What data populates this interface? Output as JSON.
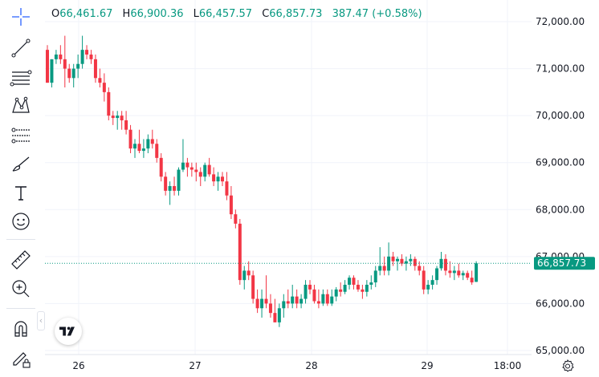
{
  "ohlc": {
    "o_label": "O",
    "o_value": "66,461.67",
    "h_label": "H",
    "h_value": "66,900.36",
    "l_label": "L",
    "l_value": "66,457.57",
    "c_label": "C",
    "c_value": "66,857.73",
    "change": "387.47 (+0.58%)"
  },
  "toolbar": {
    "icons": [
      "crosshair-icon",
      "trend-line-icon",
      "fib-retracement-icon",
      "pattern-icon",
      "forecast-icon",
      "brush-icon",
      "text-icon",
      "emoji-icon",
      "ruler-icon",
      "zoom-in-icon",
      "magnet-icon",
      "lock-drawings-icon"
    ],
    "collapse_glyph": "‹"
  },
  "colors": {
    "up": "#089981",
    "down": "#f23645",
    "grid": "#f0f3fa",
    "text": "#131722"
  },
  "chart_data": {
    "type": "candlestick",
    "price_label": "66,857.73",
    "y_axis_ticks": [
      "72,000.00",
      "71,000.00",
      "70,000.00",
      "69,000.00",
      "68,000.00",
      "67,000.00",
      "66,000.00",
      "65,000.00"
    ],
    "ylim": [
      64900,
      72300
    ],
    "x_axis_ticks": [
      "26",
      "27",
      "28",
      "29",
      "18:00"
    ],
    "current_price": 66857.73,
    "ohlc": [
      [
        71400,
        71500,
        70700,
        70700
      ],
      [
        70700,
        71200,
        70600,
        71200
      ],
      [
        71200,
        71400,
        71100,
        71300
      ],
      [
        71300,
        71500,
        71100,
        71200
      ],
      [
        71200,
        71700,
        70600,
        71000
      ],
      [
        71000,
        71100,
        70700,
        70800
      ],
      [
        70800,
        71100,
        70600,
        71000
      ],
      [
        71000,
        71300,
        70800,
        71100
      ],
      [
        71100,
        71700,
        71000,
        71400
      ],
      [
        71400,
        71500,
        71200,
        71300
      ],
      [
        71300,
        71400,
        71100,
        71200
      ],
      [
        71200,
        71300,
        70700,
        70800
      ],
      [
        70800,
        71000,
        70600,
        70700
      ],
      [
        70700,
        70900,
        70300,
        70500
      ],
      [
        70500,
        70600,
        69900,
        70000
      ],
      [
        70000,
        70100,
        69800,
        69950
      ],
      [
        69950,
        70100,
        69700,
        70000
      ],
      [
        70000,
        70100,
        69700,
        69900
      ],
      [
        69900,
        70100,
        69600,
        69700
      ],
      [
        69700,
        69800,
        69200,
        69300
      ],
      [
        69300,
        69500,
        69100,
        69400
      ],
      [
        69400,
        69700,
        69200,
        69250
      ],
      [
        69250,
        69500,
        69100,
        69300
      ],
      [
        69300,
        69600,
        69200,
        69500
      ],
      [
        69500,
        69700,
        69300,
        69400
      ],
      [
        69400,
        69500,
        69000,
        69100
      ],
      [
        69100,
        69200,
        68600,
        68700
      ],
      [
        68700,
        68800,
        68300,
        68400
      ],
      [
        68400,
        68600,
        68100,
        68500
      ],
      [
        68500,
        68700,
        68300,
        68400
      ],
      [
        68400,
        68900,
        68300,
        68850
      ],
      [
        68850,
        69500,
        68800,
        69000
      ],
      [
        69000,
        69100,
        68700,
        68900
      ],
      [
        68900,
        69000,
        68700,
        68850
      ],
      [
        68850,
        69000,
        68600,
        68800
      ],
      [
        68800,
        68900,
        68500,
        68700
      ],
      [
        68700,
        69000,
        68600,
        68950
      ],
      [
        68950,
        69100,
        68700,
        68750
      ],
      [
        68750,
        68900,
        68500,
        68600
      ],
      [
        68600,
        68800,
        68400,
        68700
      ],
      [
        68700,
        68800,
        68500,
        68600
      ],
      [
        68600,
        68800,
        68200,
        68300
      ],
      [
        68300,
        68500,
        67800,
        67900
      ],
      [
        67900,
        68000,
        67600,
        67700
      ],
      [
        67700,
        67800,
        66400,
        66500
      ],
      [
        66500,
        66800,
        66300,
        66700
      ],
      [
        66700,
        66900,
        66500,
        66600
      ],
      [
        66600,
        66700,
        66000,
        66100
      ],
      [
        66100,
        66300,
        65800,
        65900
      ],
      [
        65900,
        66300,
        65700,
        66100
      ],
      [
        66100,
        66600,
        65900,
        66000
      ],
      [
        66000,
        66200,
        65700,
        65800
      ],
      [
        65800,
        66100,
        65600,
        65600
      ],
      [
        65600,
        66000,
        65500,
        65900
      ],
      [
        65900,
        66200,
        65700,
        66050
      ],
      [
        66050,
        66300,
        65900,
        66000
      ],
      [
        66000,
        66400,
        65900,
        66150
      ],
      [
        66150,
        66300,
        65900,
        66000
      ],
      [
        66000,
        66200,
        65900,
        66100
      ],
      [
        66100,
        66500,
        66000,
        66400
      ],
      [
        66400,
        66500,
        66200,
        66300
      ],
      [
        66300,
        66400,
        66000,
        66050
      ],
      [
        66050,
        66300,
        65900,
        66000
      ],
      [
        66000,
        66300,
        65950,
        66200
      ],
      [
        66200,
        66300,
        65950,
        66000
      ],
      [
        66000,
        66300,
        65950,
        66150
      ],
      [
        66150,
        66350,
        66050,
        66300
      ],
      [
        66300,
        66450,
        66150,
        66250
      ],
      [
        66250,
        66500,
        66200,
        66400
      ],
      [
        66400,
        66600,
        66300,
        66550
      ],
      [
        66550,
        66600,
        66300,
        66400
      ],
      [
        66400,
        66500,
        66250,
        66300
      ],
      [
        66300,
        66400,
        66100,
        66250
      ],
      [
        66250,
        66500,
        66150,
        66400
      ],
      [
        66400,
        66600,
        66300,
        66450
      ],
      [
        66450,
        66800,
        66350,
        66700
      ],
      [
        66700,
        67200,
        66600,
        66800
      ],
      [
        66800,
        67000,
        66600,
        66700
      ],
      [
        66700,
        67300,
        66600,
        67000
      ],
      [
        67000,
        67100,
        66800,
        66900
      ],
      [
        66900,
        67000,
        66700,
        66950
      ],
      [
        66950,
        67050,
        66800,
        66850
      ],
      [
        66850,
        67000,
        66700,
        66900
      ],
      [
        66900,
        67050,
        66800,
        66950
      ],
      [
        66950,
        67000,
        66700,
        66800
      ],
      [
        66800,
        66900,
        66600,
        66700
      ],
      [
        66700,
        66800,
        66200,
        66300
      ],
      [
        66300,
        66500,
        66200,
        66400
      ],
      [
        66400,
        66600,
        66300,
        66500
      ],
      [
        66500,
        66800,
        66400,
        66750
      ],
      [
        66750,
        67100,
        66700,
        66950
      ],
      [
        66950,
        67050,
        66600,
        66700
      ],
      [
        66700,
        66900,
        66550,
        66650
      ],
      [
        66650,
        66800,
        66500,
        66700
      ],
      [
        66700,
        66850,
        66550,
        66600
      ],
      [
        66600,
        66700,
        66500,
        66650
      ],
      [
        66650,
        66700,
        66500,
        66550
      ],
      [
        66550,
        66700,
        66400,
        66450
      ],
      [
        66461.67,
        66900.36,
        66457.57,
        66857.73
      ]
    ]
  }
}
